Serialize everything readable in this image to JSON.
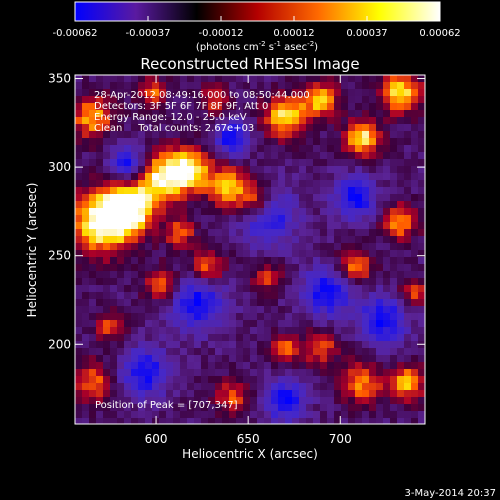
{
  "chart_data": {
    "type": "heatmap",
    "title": "Reconstructed RHESSI Image",
    "xlabel": "Heliocentric X (arcsec)",
    "ylabel": "Heliocentric Y (arcsec)",
    "xlim": [
      556,
      746
    ],
    "ylim": [
      155,
      352
    ],
    "x_ticks": [
      600,
      650,
      700
    ],
    "y_ticks": [
      200,
      250,
      300,
      350
    ],
    "colorbar": {
      "ticks": [
        "-0.00062",
        "-0.00037",
        "-0.00012",
        "0.00012",
        "0.00037",
        "0.00062"
      ],
      "unit_label": "(photons cm",
      "unit_sup1": "-2",
      "unit_mid1": " s",
      "unit_sup2": "-1",
      "unit_mid2": " asec",
      "unit_sup3": "-2",
      "unit_end": ")",
      "range": [
        -0.00062,
        0.00062
      ],
      "colors": [
        "#0000ff",
        "#5a1aa0",
        "#000000",
        "#b40000",
        "#ff6a00",
        "#ffff00",
        "#ffffff"
      ]
    },
    "annotations": [
      "28-Apr-2012 08:49:16.000 to 08:50:44.000",
      "Detectors: 3F 5F 6F 7F 8F 9F, Att 0",
      "Energy Range: 12.0 - 25.0 keV",
      "Clean     Total counts: 2.67e+03"
    ],
    "peak_label": "Position of Peak = [707,347]",
    "grid": false
  },
  "timestamp": "3-May-2014 20:37"
}
